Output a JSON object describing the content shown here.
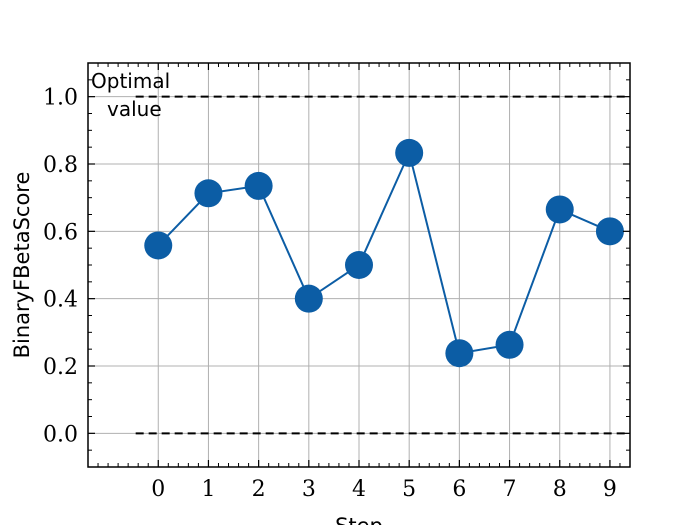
{
  "chart_data": {
    "type": "line",
    "x": [
      0,
      1,
      2,
      3,
      4,
      5,
      6,
      7,
      8,
      9
    ],
    "series": [
      {
        "values": [
          0.558,
          0.713,
          0.735,
          0.4,
          0.5,
          0.833,
          0.238,
          0.263,
          0.665,
          0.6
        ]
      }
    ],
    "xlabel": "Step",
    "ylabel": "BinaryFBetaScore",
    "xlim": [
      -1.4,
      9.4
    ],
    "ylim": [
      -0.1,
      1.1
    ],
    "xticks": [
      "0",
      "1",
      "2",
      "3",
      "4",
      "5",
      "6",
      "7",
      "8",
      "9"
    ],
    "yticks": [
      "0.0",
      "0.2",
      "0.4",
      "0.6",
      "0.8",
      "1.0"
    ],
    "grid": true,
    "reference_lines": [
      {
        "y": 1.0,
        "style": "dashed",
        "color": "#000000"
      },
      {
        "y": 0.0,
        "style": "dashed",
        "color": "#000000"
      }
    ],
    "annotation": {
      "line1": "Optimal",
      "line2": "value"
    },
    "colors": {
      "series": "#0C5DA5",
      "grid": "#b0b0b0",
      "reference": "#000000"
    }
  }
}
